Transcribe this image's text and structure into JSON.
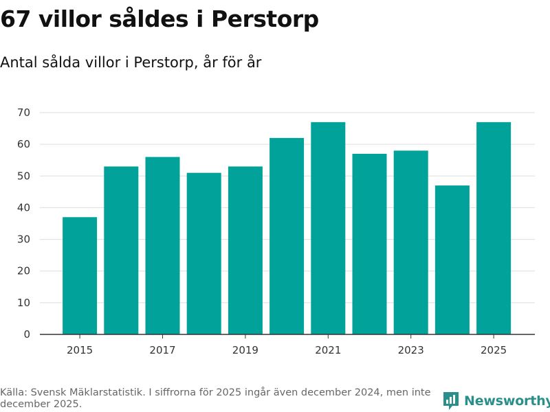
{
  "title": "67 villor såldes i Perstorp",
  "subtitle": "Antal sålda villor i Perstorp, år för år",
  "source": "Källa: Svensk Mäklarstatistik. I siffrorna för 2025 ingår även december 2024, men inte december 2025.",
  "brand": {
    "name": "Newsworthy",
    "color": "#2a8f8a"
  },
  "colors": {
    "bar": "#00a29a",
    "grid": "#dddddd",
    "axis": "#333333"
  },
  "chart_data": {
    "type": "bar",
    "title": "67 villor såldes i Perstorp",
    "xlabel": "",
    "ylabel": "",
    "categories": [
      "2015",
      "2016",
      "2017",
      "2018",
      "2019",
      "2020",
      "2021",
      "2022",
      "2023",
      "2024",
      "2025"
    ],
    "values": [
      37,
      53,
      56,
      51,
      53,
      62,
      67,
      57,
      58,
      47,
      67
    ],
    "x_tick_labels": [
      "2015",
      "2017",
      "2019",
      "2021",
      "2023",
      "2025"
    ],
    "y_ticks": [
      0,
      10,
      20,
      30,
      40,
      50,
      60,
      70
    ],
    "ylim": [
      0,
      70
    ],
    "grid": true
  }
}
